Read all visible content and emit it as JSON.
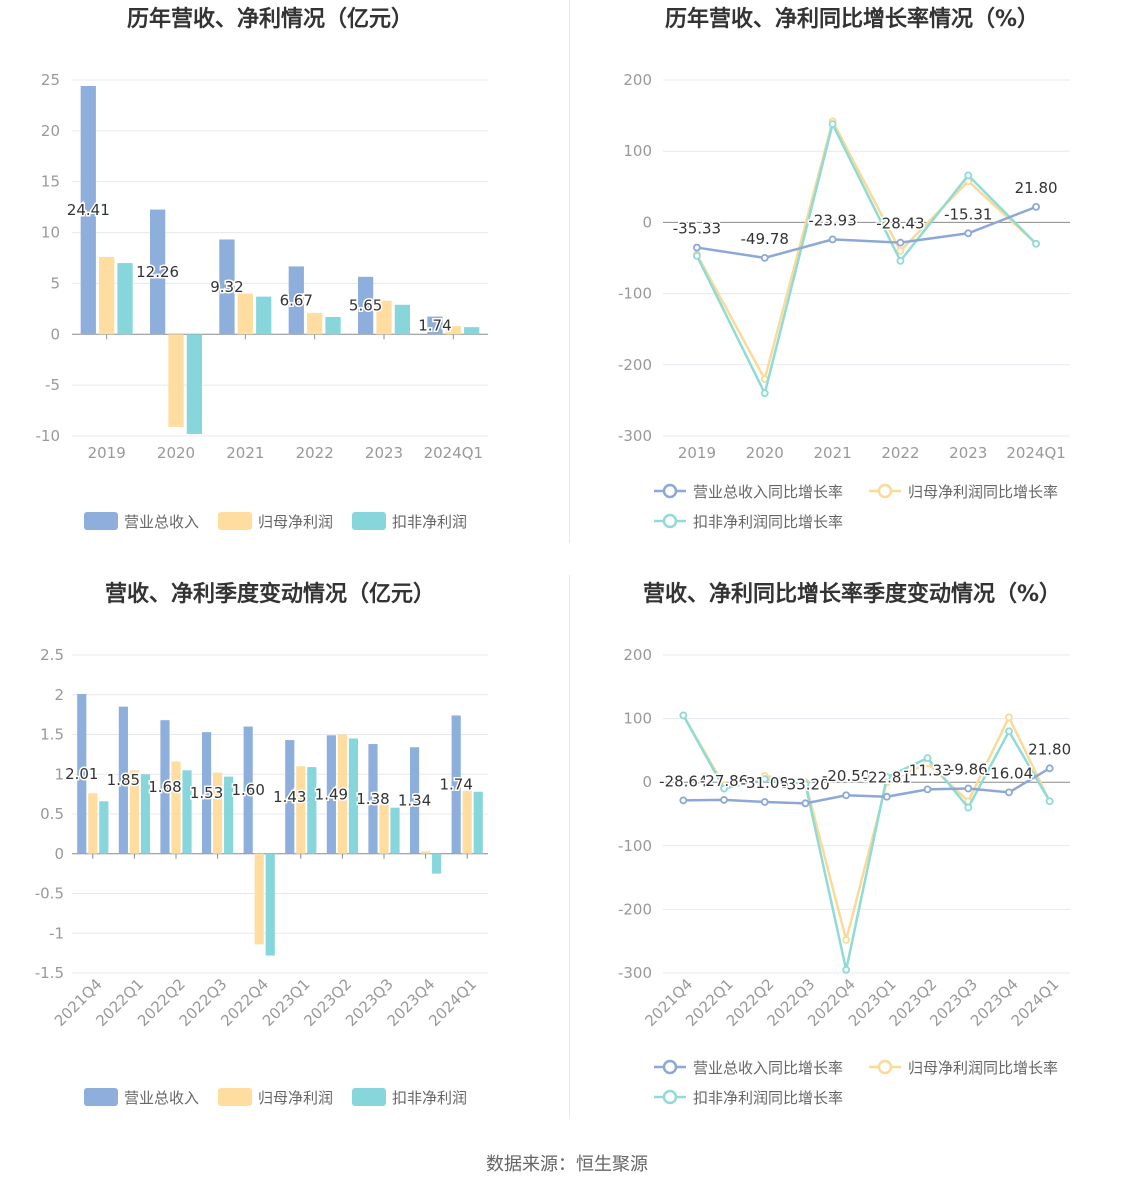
{
  "footer": "数据来源：恒生聚源",
  "colors": {
    "revenue": "#8eaedb",
    "net_profit": "#ffdca0",
    "deducted_profit": "#86d6db",
    "revenue_line": "#8da8d6",
    "net_profit_line": "#fbd998",
    "deducted_profit_line": "#8fdbd6",
    "axis": "#999999",
    "grid": "#e6e8ef",
    "title": "#333333"
  },
  "chart_data": [
    {
      "type": "bar",
      "title": "历年营收、净利情况（亿元）",
      "categories": [
        "2019",
        "2020",
        "2021",
        "2022",
        "2023",
        "2024Q1"
      ],
      "series": [
        {
          "name": "营业总收入",
          "values": [
            24.41,
            12.26,
            9.32,
            6.67,
            5.65,
            1.74
          ]
        },
        {
          "name": "归母净利润",
          "values": [
            7.6,
            -9.1,
            4.0,
            2.1,
            3.3,
            0.8
          ]
        },
        {
          "name": "扣非净利润",
          "values": [
            7.0,
            -9.8,
            3.7,
            1.7,
            2.9,
            0.7
          ]
        }
      ],
      "data_labels": [
        "24.41",
        "12.26",
        "9.32",
        "6.67",
        "5.65",
        "1.74"
      ],
      "y_ticks": [
        "25",
        "20",
        "15",
        "10",
        "5",
        "0",
        "-5",
        "-10"
      ],
      "ylim": [
        -10,
        25
      ],
      "grid": true,
      "legend_position": "bottom-center"
    },
    {
      "type": "line",
      "title": "历年营收、净利同比增长率情况（%）",
      "categories": [
        "2019",
        "2020",
        "2021",
        "2022",
        "2023",
        "2024Q1"
      ],
      "series": [
        {
          "name": "营业总收入同比增长率",
          "values": [
            -35.33,
            -49.78,
            -23.93,
            -28.43,
            -15.31,
            21.8
          ]
        },
        {
          "name": "归母净利润同比增长率",
          "values": [
            -45,
            -220,
            142,
            -40,
            58,
            -30
          ]
        },
        {
          "name": "扣非净利润同比增长率",
          "values": [
            -47,
            -240,
            138,
            -54,
            66,
            -30
          ]
        }
      ],
      "data_labels": [
        "-35.33",
        "-49.78",
        "-23.93",
        "-28.43",
        "-15.31",
        "21.80"
      ],
      "y_ticks": [
        "200",
        "100",
        "0",
        "-100",
        "-200",
        "-300"
      ],
      "ylim": [
        -300,
        200
      ],
      "grid": true,
      "legend_position": "bottom"
    },
    {
      "type": "bar",
      "title": "营收、净利季度变动情况（亿元）",
      "categories": [
        "2021Q4",
        "2022Q1",
        "2022Q2",
        "2022Q3",
        "2022Q4",
        "2023Q1",
        "2023Q2",
        "2023Q3",
        "2023Q4",
        "2024Q1"
      ],
      "series": [
        {
          "name": "营业总收入",
          "values": [
            2.01,
            1.85,
            1.68,
            1.53,
            1.6,
            1.43,
            1.49,
            1.38,
            1.34,
            1.74
          ]
        },
        {
          "name": "归母净利润",
          "values": [
            0.76,
            1.05,
            1.16,
            1.02,
            -1.14,
            1.1,
            1.5,
            0.62,
            0.03,
            0.79
          ]
        },
        {
          "name": "扣非净利润",
          "values": [
            0.66,
            1.0,
            1.05,
            0.97,
            -1.28,
            1.09,
            1.45,
            0.58,
            -0.25,
            0.78
          ]
        }
      ],
      "data_labels": [
        "2.01",
        "1.85",
        "1.68",
        "1.53",
        "1.60",
        "1.43",
        "1.49",
        "1.38",
        "1.34",
        "1.74"
      ],
      "y_ticks": [
        "2.5",
        "2",
        "1.5",
        "1",
        "0.5",
        "0",
        "-0.5",
        "-1",
        "-1.5"
      ],
      "ylim": [
        -1.5,
        2.5
      ],
      "grid": true,
      "legend_position": "bottom-center"
    },
    {
      "type": "line",
      "title": "营收、净利同比增长率季度变动情况（%）",
      "categories": [
        "2021Q4",
        "2022Q1",
        "2022Q2",
        "2022Q3",
        "2022Q4",
        "2023Q1",
        "2023Q2",
        "2023Q3",
        "2023Q4",
        "2024Q1"
      ],
      "series": [
        {
          "name": "营业总收入同比增长率",
          "values": [
            -28.64,
            -27.86,
            -31.08,
            -33.2,
            -20.5,
            -22.81,
            -11.33,
            -9.86,
            -16.04,
            21.8
          ]
        },
        {
          "name": "归母净利润同比增长率",
          "values": [
            105,
            -5,
            10,
            0,
            -248,
            0,
            30,
            -30,
            102,
            -30
          ]
        },
        {
          "name": "扣非净利润同比增长率",
          "values": [
            105,
            -10,
            5,
            -3,
            -295,
            8,
            38,
            -40,
            80,
            -30
          ]
        }
      ],
      "data_labels": [
        "-28.64",
        "-27.86",
        "-31.08",
        "-33.20",
        "-20.50",
        "-22.81",
        "-11.33",
        "-9.86",
        "-16.04",
        "21.80"
      ],
      "y_ticks": [
        "200",
        "100",
        "0",
        "-100",
        "-200",
        "-300"
      ],
      "ylim": [
        -300,
        200
      ],
      "grid": true,
      "legend_position": "bottom"
    }
  ]
}
